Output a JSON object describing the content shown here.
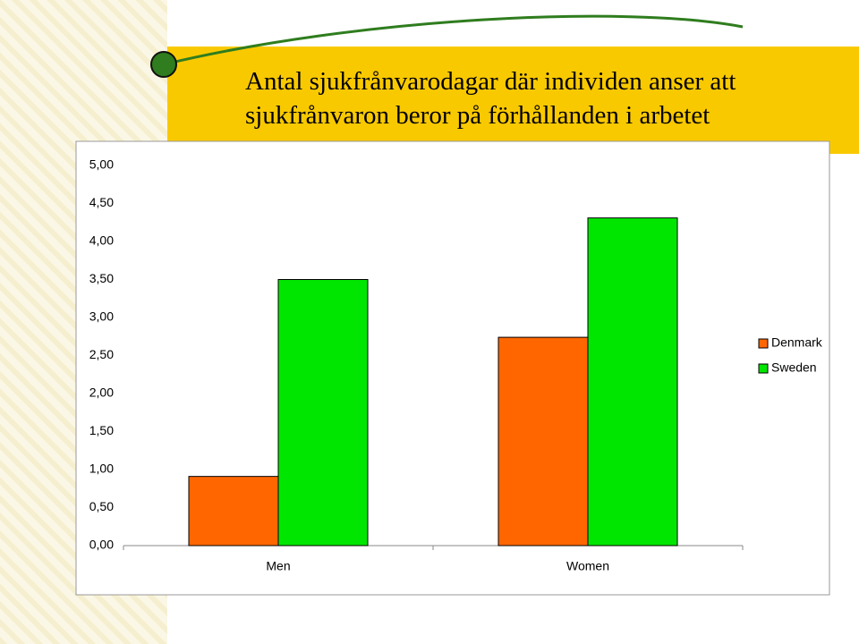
{
  "chart_data": {
    "type": "bar",
    "title": "Antal sjukfrånvarodagar där individen anser att sjukfrånvaron beror på förhållanden i arbetet",
    "categories": [
      "Men",
      "Women"
    ],
    "series": [
      {
        "name": "Denmark",
        "color": "#ff6600",
        "values": [
          0.91,
          2.74
        ]
      },
      {
        "name": "Sweden",
        "color": "#00e600",
        "values": [
          3.5,
          4.31
        ]
      }
    ],
    "ylim": [
      0,
      5
    ],
    "yticks": [
      {
        "value": 0,
        "label": "0,00"
      },
      {
        "value": 0.5,
        "label": "0,50"
      },
      {
        "value": 1,
        "label": "1,00"
      },
      {
        "value": 1.5,
        "label": "1,50"
      },
      {
        "value": 2,
        "label": "2,00"
      },
      {
        "value": 2.5,
        "label": "2,50"
      },
      {
        "value": 3,
        "label": "3,00"
      },
      {
        "value": 3.5,
        "label": "3,50"
      },
      {
        "value": 4,
        "label": "4,00"
      },
      {
        "value": 4.5,
        "label": "4,50"
      },
      {
        "value": 5,
        "label": "5,00"
      }
    ],
    "grid": false,
    "legend": "right"
  }
}
